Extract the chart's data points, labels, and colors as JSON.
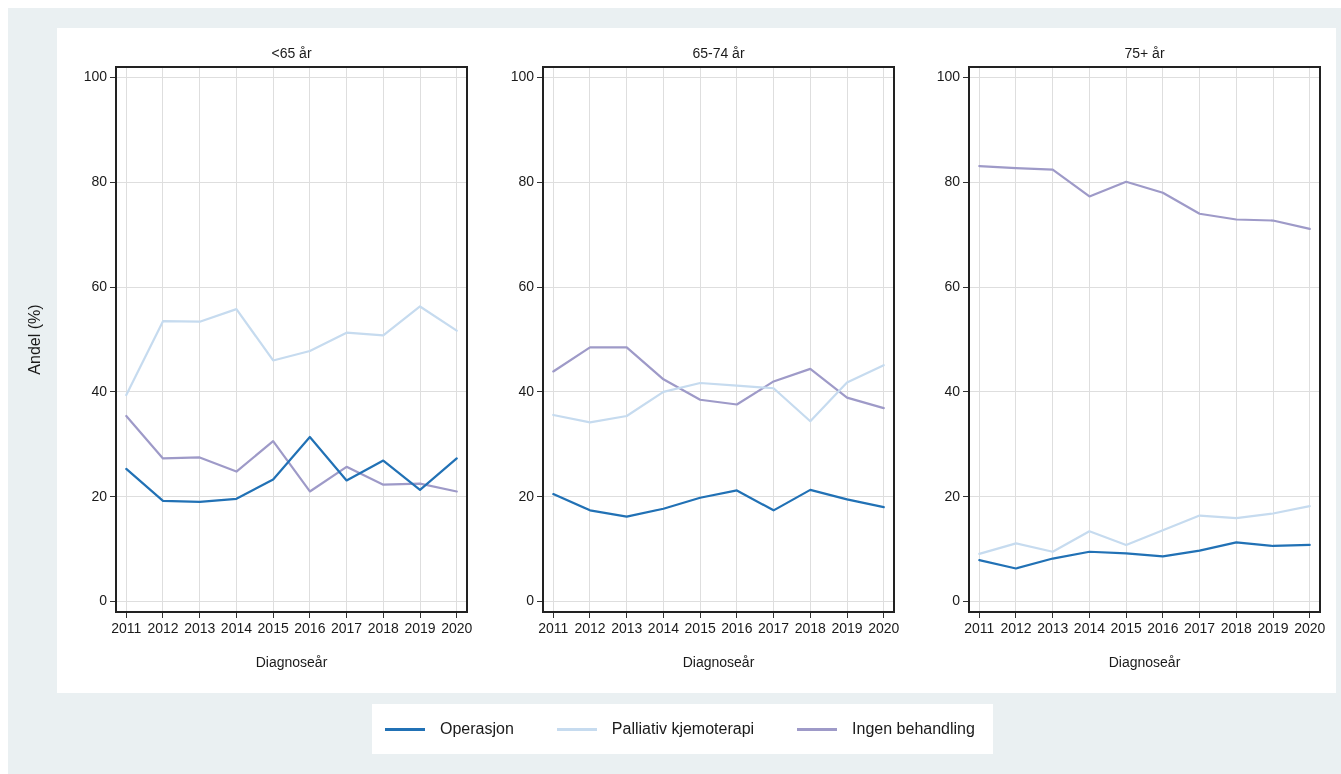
{
  "chart_data": [
    {
      "type": "line",
      "title": "<65 år",
      "xlabel": "Diagnoseår",
      "ylabel": "Andel (%)",
      "x": [
        2011,
        2012,
        2013,
        2014,
        2015,
        2016,
        2017,
        2018,
        2019,
        2020
      ],
      "xlim": [
        2010.72,
        2020.28
      ],
      "xticks": [
        2011,
        2012,
        2013,
        2014,
        2015,
        2016,
        2017,
        2018,
        2019,
        2020
      ],
      "ylim": [
        -2,
        102
      ],
      "yticks": [
        0,
        20,
        40,
        60,
        80,
        100
      ],
      "grid": true,
      "legend": "bottom",
      "series": [
        {
          "name": "Operasjon",
          "color": "#2171b5",
          "values": [
            25.3,
            19.2,
            19.0,
            19.6,
            23.3,
            31.4,
            23.1,
            26.9,
            21.3,
            27.3
          ]
        },
        {
          "name": "Palliativ kjemoterapi",
          "color": "#c6dbef",
          "values": [
            39.4,
            53.5,
            53.4,
            55.8,
            46.0,
            47.8,
            51.3,
            50.8,
            56.3,
            51.7
          ]
        },
        {
          "name": "Ingen behandling",
          "color": "#9e9ac8",
          "values": [
            35.4,
            27.3,
            27.5,
            24.8,
            30.6,
            21.0,
            25.7,
            22.3,
            22.5,
            21.0
          ]
        }
      ]
    },
    {
      "type": "line",
      "title": "65-74 år",
      "xlabel": "Diagnoseår",
      "x": [
        2011,
        2012,
        2013,
        2014,
        2015,
        2016,
        2017,
        2018,
        2019,
        2020
      ],
      "xlim": [
        2010.72,
        2020.28
      ],
      "xticks": [
        2011,
        2012,
        2013,
        2014,
        2015,
        2016,
        2017,
        2018,
        2019,
        2020
      ],
      "ylim": [
        -2,
        102
      ],
      "yticks": [
        0,
        20,
        40,
        60,
        80,
        100
      ],
      "grid": true,
      "series": [
        {
          "color": "#2171b5",
          "values": [
            20.5,
            17.4,
            16.2,
            17.7,
            19.8,
            21.2,
            17.4,
            21.3,
            19.5,
            18.0
          ]
        },
        {
          "color": "#c6dbef",
          "values": [
            35.6,
            34.2,
            35.4,
            40.0,
            41.7,
            41.2,
            40.7,
            34.4,
            41.8,
            45.1
          ]
        },
        {
          "color": "#9e9ac8",
          "values": [
            43.9,
            48.5,
            48.5,
            42.4,
            38.5,
            37.6,
            42.0,
            44.4,
            38.9,
            36.9
          ]
        }
      ]
    },
    {
      "type": "line",
      "title": "75+ år",
      "xlabel": "Diagnoseår",
      "x": [
        2011,
        2012,
        2013,
        2014,
        2015,
        2016,
        2017,
        2018,
        2019,
        2020
      ],
      "xlim": [
        2010.72,
        2020.28
      ],
      "xticks": [
        2011,
        2012,
        2013,
        2014,
        2015,
        2016,
        2017,
        2018,
        2019,
        2020
      ],
      "ylim": [
        -2,
        102
      ],
      "yticks": [
        0,
        20,
        40,
        60,
        80,
        100
      ],
      "grid": true,
      "series": [
        {
          "color": "#2171b5",
          "values": [
            7.9,
            6.3,
            8.2,
            9.5,
            9.2,
            8.6,
            9.7,
            11.3,
            10.6,
            10.8
          ]
        },
        {
          "color": "#c6dbef",
          "values": [
            9.1,
            11.1,
            9.5,
            13.4,
            10.8,
            13.6,
            16.4,
            15.9,
            16.8,
            18.2
          ]
        },
        {
          "color": "#9e9ac8",
          "values": [
            83.1,
            82.7,
            82.4,
            77.3,
            80.1,
            78.0,
            74.0,
            72.9,
            72.7,
            71.1
          ]
        }
      ]
    }
  ]
}
